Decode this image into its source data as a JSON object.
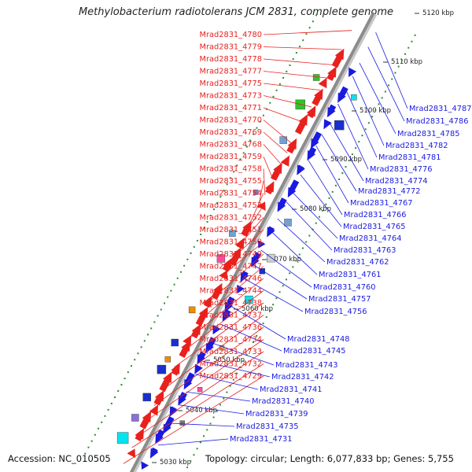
{
  "title": "Methylobacterium radiotolerans JCM 2831, complete genome",
  "footer": {
    "accession_label": "Accession:",
    "accession": "NC_010505",
    "topology_label": "Topology:",
    "topology": "circular",
    "length_label": "Length:",
    "length": "6,077,833 bp",
    "genes_label": "Genes:",
    "genes": "5,755"
  },
  "colors": {
    "forward_strand": "#e8211d",
    "reverse_strand": "#1a1ae0",
    "backbone": "#8c8c8c",
    "gc_dots": "#2e8b2e"
  },
  "ticks": [
    "5030 kbp",
    "5040 kbp",
    "5050 kbp",
    "5060 kbp",
    "5070 kbp",
    "5080 kbp",
    "5090 kbp",
    "5100 kbp",
    "5110 kbp",
    "5120 kbp"
  ],
  "forward_genes": [
    "Mrad2831_4780",
    "Mrad2831_4779",
    "Mrad2831_4778",
    "Mrad2831_4777",
    "Mrad2831_4775",
    "Mrad2831_4773",
    "Mrad2831_4771",
    "Mrad2831_4770",
    "Mrad2831_4769",
    "Mrad2831_4768",
    "Mrad2831_4759",
    "Mrad2831_4758",
    "Mrad2831_4755",
    "Mrad2831_4754",
    "Mrad2831_4753",
    "Mrad2831_4752",
    "Mrad2831_4751",
    "Mrad2831_4750",
    "Mrad2831_4749",
    "Mrad2831_4747",
    "Mrad2831_4746",
    "Mrad2831_4744",
    "Mrad2831_4738",
    "Mrad2831_4737",
    "Mrad2831_4736",
    "Mrad2831_4734",
    "Mrad2831_4733",
    "Mrad2831_4732",
    "Mrad2831_4729"
  ],
  "reverse_genes": [
    "Mrad2831_4787",
    "Mrad2831_4786",
    "Mrad2831_4785",
    "Mrad2831_4782",
    "Mrad2831_4781",
    "Mrad2831_4776",
    "Mrad2831_4774",
    "Mrad2831_4772",
    "Mrad2831_4767",
    "Mrad2831_4766",
    "Mrad2831_4765",
    "Mrad2831_4764",
    "Mrad2831_4763",
    "Mrad2831_4762",
    "Mrad2831_4761",
    "Mrad2831_4760",
    "Mrad2831_4757",
    "Mrad2831_4756",
    "Mrad2831_4748",
    "Mrad2831_4745",
    "Mrad2831_4743",
    "Mrad2831_4742",
    "Mrad2831_4741",
    "Mrad2831_4740",
    "Mrad2831_4739",
    "Mrad2831_4735",
    "Mrad2831_4731"
  ]
}
